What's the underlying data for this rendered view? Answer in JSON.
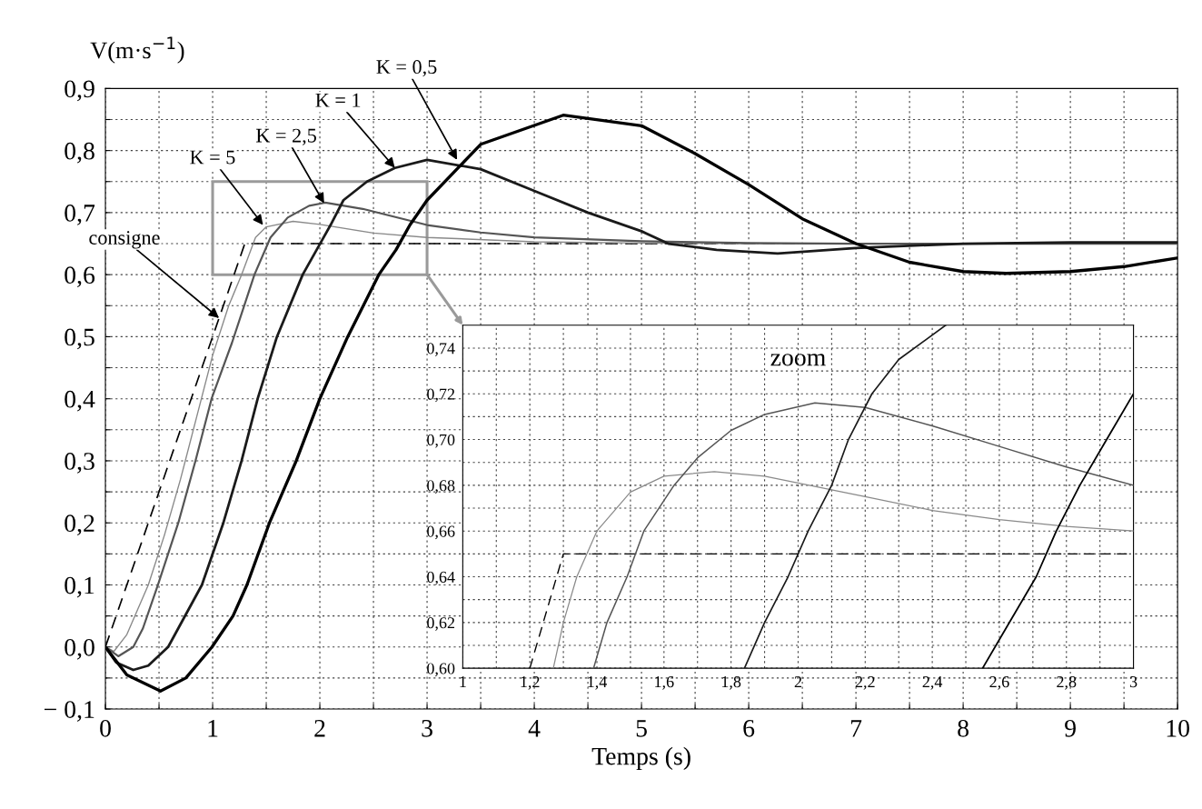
{
  "chart_data": [
    {
      "type": "line",
      "xlabel": "Temps (s)",
      "ylabel": "V(m·s$^{−1}$)",
      "xlim": [
        0,
        10
      ],
      "ylim": [
        -0.1,
        0.9
      ],
      "xticks": [
        0,
        {
          "value": 0.5,
          "label": null
        },
        1,
        {
          "value": 1.5,
          "label": null
        },
        2,
        {
          "value": 2.5,
          "label": null
        },
        3,
        {
          "value": 3.5,
          "label": null
        },
        4,
        {
          "value": 4.5,
          "label": null
        },
        5,
        {
          "value": 5.5,
          "label": null
        },
        6,
        {
          "value": 6.5,
          "label": null
        },
        7,
        {
          "value": 7.5,
          "label": null
        },
        8,
        {
          "value": 8.5,
          "label": null
        },
        9,
        {
          "value": 9.5,
          "label": null
        },
        10
      ],
      "yticks": [
        {
          "value": -0.1,
          "label": "− 0,1"
        },
        {
          "value": -0.05,
          "label": null
        },
        {
          "value": 0,
          "label": "0,0"
        },
        {
          "value": 0.05,
          "label": null
        },
        {
          "value": 0.1,
          "label": "0,1"
        },
        {
          "value": 0.15,
          "label": null
        },
        {
          "value": 0.2,
          "label": "0,2"
        },
        {
          "value": 0.25,
          "label": null
        },
        {
          "value": 0.3,
          "label": "0,3"
        },
        {
          "value": 0.35,
          "label": null
        },
        {
          "value": 0.4,
          "label": "0,4"
        },
        {
          "value": 0.45,
          "label": null
        },
        {
          "value": 0.5,
          "label": "0,5"
        },
        {
          "value": 0.55,
          "label": null
        },
        {
          "value": 0.6,
          "label": "0,6"
        },
        {
          "value": 0.65,
          "label": null
        },
        {
          "value": 0.7,
          "label": "0,7"
        },
        {
          "value": 0.75,
          "label": null
        },
        {
          "value": 0.8,
          "label": "0,8"
        },
        {
          "value": 0.85,
          "label": null
        },
        {
          "value": 0.9,
          "label": "0,9"
        }
      ],
      "grid": true,
      "legend": false,
      "marker": "none",
      "series": [
        {
          "color": "#000000",
          "line_style": "dashed",
          "x": [
            0,
            1.3,
            10
          ],
          "values": [
            0,
            0.65,
            0.65
          ]
        },
        {
          "color": "#8a8a8a",
          "x": [
            0,
            0.08,
            0.2,
            0.3,
            0.4,
            0.55,
            0.7,
            0.85,
            1.0,
            1.15,
            1.27,
            1.4,
            1.5,
            1.75,
            2.0,
            2.5,
            3,
            4,
            5,
            6,
            10
          ],
          "values": [
            0,
            -0.007,
            0.02,
            0.06,
            0.1,
            0.18,
            0.27,
            0.37,
            0.47,
            0.55,
            0.6,
            0.66,
            0.677,
            0.686,
            0.681,
            0.667,
            0.66,
            0.653,
            0.651,
            0.65,
            0.65
          ]
        },
        {
          "color": "#555555",
          "x": [
            0,
            0.12,
            0.26,
            0.35,
            0.49,
            0.68,
            0.84,
            0.99,
            1.18,
            1.39,
            1.54,
            1.7,
            1.9,
            2.05,
            2.4,
            3,
            3.5,
            4,
            5,
            6,
            7,
            10
          ],
          "values": [
            0,
            -0.015,
            0,
            0.03,
            0.1,
            0.2,
            0.3,
            0.4,
            0.49,
            0.6,
            0.66,
            0.692,
            0.711,
            0.716,
            0.706,
            0.68,
            0.668,
            0.66,
            0.654,
            0.651,
            0.65,
            0.65
          ]
        },
        {
          "color": "#1a1a1a",
          "x": [
            0,
            0.1,
            0.26,
            0.4,
            0.585,
            0.9,
            1.1,
            1.27,
            1.42,
            1.6,
            1.84,
            1.97,
            2.1,
            2.22,
            2.44,
            2.7,
            3.0,
            3.5,
            4,
            4.5,
            5,
            5.25,
            5.7,
            6.27,
            7,
            8,
            9,
            10
          ],
          "values": [
            0,
            -0.025,
            -0.037,
            -0.03,
            0,
            0.1,
            0.2,
            0.3,
            0.4,
            0.5,
            0.6,
            0.64,
            0.68,
            0.72,
            0.75,
            0.772,
            0.785,
            0.77,
            0.735,
            0.7,
            0.67,
            0.65,
            0.64,
            0.634,
            0.643,
            0.65,
            0.652,
            0.652
          ]
        },
        {
          "color": "#000000",
          "x": [
            0,
            0.2,
            0.514,
            0.75,
            0.994,
            1.19,
            1.32,
            1.53,
            1.78,
            2.0,
            2.26,
            2.55,
            2.71,
            2.84,
            3.0,
            3.5,
            4.27,
            5,
            5.5,
            6,
            6.5,
            7,
            7.5,
            8,
            8.4,
            9,
            9.5,
            10
          ],
          "values": [
            0,
            -0.045,
            -0.071,
            -0.05,
            0,
            0.05,
            0.1,
            0.2,
            0.3,
            0.4,
            0.5,
            0.6,
            0.64,
            0.68,
            0.72,
            0.81,
            0.857,
            0.84,
            0.795,
            0.745,
            0.69,
            0.65,
            0.62,
            0.605,
            0.602,
            0.605,
            0.613,
            0.627
          ]
        }
      ],
      "annotations": [
        {
          "text": "consigne",
          "x": 1.06,
          "y": 0.53
        },
        {
          "text": "K = 5",
          "x": 1.47,
          "y": 0.68
        },
        {
          "text": "K = 2,5",
          "x": 2.04,
          "y": 0.715
        },
        {
          "text": "K = 1",
          "x": 2.7,
          "y": 0.772
        },
        {
          "text": "K = 0,5",
          "x": 3.28,
          "y": 0.785
        }
      ]
    },
    {
      "type": "line",
      "title": "zoom",
      "xlim": [
        1,
        3
      ],
      "ylim": [
        0.6,
        0.75
      ],
      "xticks": [
        1,
        {
          "value": 1.1,
          "label": null
        },
        {
          "value": 1.2,
          "label": "1,2"
        },
        {
          "value": 1.3,
          "label": null
        },
        {
          "value": 1.4,
          "label": "1,4"
        },
        {
          "value": 1.5,
          "label": null
        },
        {
          "value": 1.6,
          "label": "1,6"
        },
        {
          "value": 1.7,
          "label": null
        },
        {
          "value": 1.8,
          "label": "1,8"
        },
        {
          "value": 1.9,
          "label": null
        },
        2,
        {
          "value": 2.1,
          "label": null
        },
        {
          "value": 2.2,
          "label": "2,2"
        },
        {
          "value": 2.3,
          "label": null
        },
        {
          "value": 2.4,
          "label": "2,4"
        },
        {
          "value": 2.5,
          "label": null
        },
        {
          "value": 2.6,
          "label": "2,6"
        },
        {
          "value": 2.7,
          "label": null
        },
        {
          "value": 2.8,
          "label": "2,8"
        },
        {
          "value": 2.9,
          "label": null
        },
        3
      ],
      "yticks": [
        {
          "value": 0.6,
          "label": "0,60"
        },
        {
          "value": 0.61,
          "label": null
        },
        {
          "value": 0.62,
          "label": "0,62"
        },
        {
          "value": 0.63,
          "label": null
        },
        {
          "value": 0.64,
          "label": "0,64"
        },
        {
          "value": 0.65,
          "label": null
        },
        {
          "value": 0.66,
          "label": "0,66"
        },
        {
          "value": 0.67,
          "label": null
        },
        {
          "value": 0.68,
          "label": "0,68"
        },
        {
          "value": 0.69,
          "label": null
        },
        {
          "value": 0.7,
          "label": "0,70"
        },
        {
          "value": 0.71,
          "label": null
        },
        {
          "value": 0.72,
          "label": "0,72"
        },
        {
          "value": 0.73,
          "label": null
        },
        {
          "value": 0.74,
          "label": "0,74"
        }
      ],
      "grid": true,
      "legend": false,
      "marker": "none",
      "series": [
        {
          "color": "#000000",
          "line_style": "dashed",
          "x": [
            1.2,
            1.3,
            3
          ],
          "values": [
            0.6,
            0.65,
            0.65
          ]
        },
        {
          "color": "#8a8a8a",
          "x": [
            1.27,
            1.3,
            1.34,
            1.4,
            1.5,
            1.6,
            1.75,
            1.9,
            2.0,
            2.2,
            2.4,
            2.6,
            2.8,
            3.0
          ],
          "values": [
            0.6,
            0.62,
            0.64,
            0.66,
            0.677,
            0.684,
            0.686,
            0.684,
            0.681,
            0.675,
            0.669,
            0.665,
            0.662,
            0.66
          ]
        },
        {
          "color": "#555555",
          "x": [
            1.39,
            1.43,
            1.49,
            1.54,
            1.63,
            1.7,
            1.8,
            1.9,
            2.05,
            2.2,
            2.4,
            2.6,
            2.8,
            3.0
          ],
          "values": [
            0.6,
            0.62,
            0.64,
            0.66,
            0.68,
            0.692,
            0.704,
            0.711,
            0.716,
            0.714,
            0.706,
            0.697,
            0.688,
            0.68
          ]
        },
        {
          "color": "#1a1a1a",
          "x": [
            1.84,
            1.9,
            1.97,
            2.03,
            2.1,
            2.15,
            2.22,
            2.3,
            2.44
          ],
          "values": [
            0.6,
            0.62,
            0.64,
            0.66,
            0.68,
            0.7,
            0.72,
            0.735,
            0.75
          ]
        },
        {
          "color": "#000000",
          "x": [
            2.55,
            2.63,
            2.71,
            2.77,
            2.84,
            2.92,
            3.0
          ],
          "values": [
            0.6,
            0.62,
            0.64,
            0.66,
            0.68,
            0.7,
            0.72
          ]
        }
      ]
    }
  ]
}
